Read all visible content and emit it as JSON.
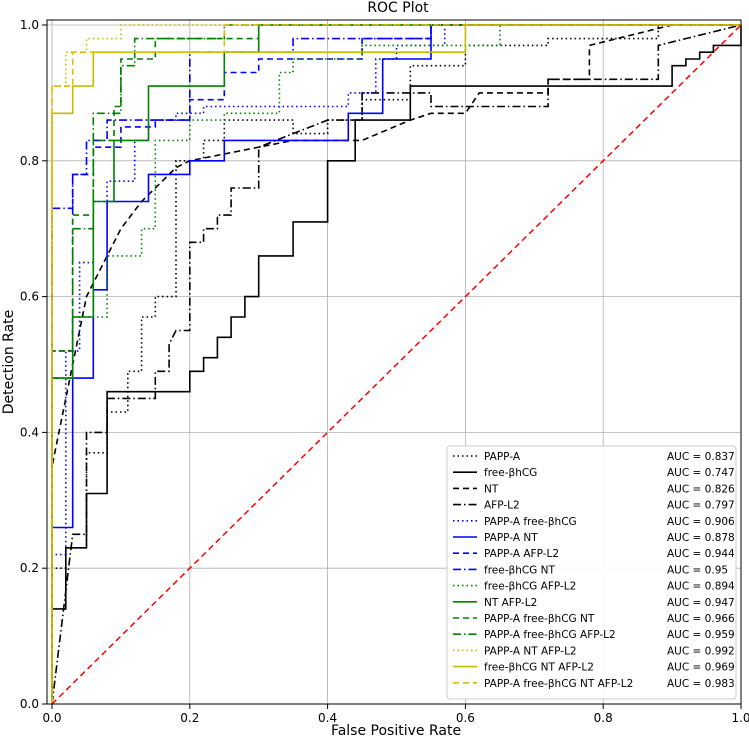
{
  "chart_data": {
    "type": "line",
    "title": "ROC Plot",
    "xlabel": "False Positive Rate",
    "ylabel": "Detection Rate",
    "xlim": [
      0,
      1
    ],
    "ylim": [
      0,
      1
    ],
    "xticks": [
      0.0,
      0.2,
      0.4,
      0.6,
      0.8,
      1.0
    ],
    "xtick_labels": [
      "0.0",
      "0.2",
      "0.4",
      "0.6",
      "0.8",
      "1.0"
    ],
    "yticks": [
      0.0,
      0.2,
      0.4,
      0.6,
      0.8,
      1.0
    ],
    "ytick_labels": [
      "0.0",
      "0.2",
      "0.4",
      "0.6",
      "0.8",
      "1.0"
    ],
    "grid": true,
    "legend_position": "bottom-right",
    "reference_line": {
      "x": [
        0,
        1
      ],
      "y": [
        0,
        1
      ],
      "color": "#ff0000",
      "style": "dashed"
    },
    "series": [
      {
        "name": "PAPP-A",
        "auc_label": "AUC = 0.837",
        "color": "#000000",
        "style": "dotted",
        "x": [
          0,
          0,
          0.02,
          0.02,
          0.05,
          0.05,
          0.08,
          0.08,
          0.11,
          0.11,
          0.13,
          0.13,
          0.15,
          0.15,
          0.18,
          0.18,
          0.22,
          0.22,
          0.25,
          0.25,
          0.35,
          0.35,
          0.4,
          0.4,
          0.45,
          0.45,
          0.52,
          0.52,
          0.6,
          0.6,
          0.72,
          0.72,
          0.88,
          0.88,
          1
        ],
        "y": [
          0,
          0.2,
          0.2,
          0.23,
          0.23,
          0.37,
          0.37,
          0.43,
          0.43,
          0.49,
          0.49,
          0.57,
          0.57,
          0.6,
          0.6,
          0.8,
          0.8,
          0.83,
          0.83,
          0.86,
          0.86,
          0.84,
          0.84,
          0.86,
          0.86,
          0.89,
          0.89,
          0.94,
          0.94,
          0.97,
          0.97,
          0.98,
          0.98,
          1.0,
          1.0
        ]
      },
      {
        "name": "free-βhCG",
        "auc_label": "AUC = 0.747",
        "color": "#000000",
        "style": "solid",
        "x": [
          0,
          0,
          0.02,
          0.02,
          0.05,
          0.05,
          0.08,
          0.08,
          0.2,
          0.2,
          0.22,
          0.22,
          0.24,
          0.24,
          0.26,
          0.26,
          0.28,
          0.28,
          0.3,
          0.3,
          0.35,
          0.35,
          0.4,
          0.4,
          0.44,
          0.44,
          0.52,
          0.52,
          0.75,
          0.75,
          0.9,
          0.9,
          0.92,
          0.92,
          0.94,
          0.94,
          0.96,
          0.96,
          1,
          1
        ],
        "y": [
          0.03,
          0.14,
          0.14,
          0.23,
          0.23,
          0.31,
          0.31,
          0.46,
          0.46,
          0.49,
          0.49,
          0.51,
          0.51,
          0.54,
          0.54,
          0.57,
          0.57,
          0.6,
          0.6,
          0.66,
          0.66,
          0.71,
          0.71,
          0.8,
          0.8,
          0.86,
          0.86,
          0.91,
          0.91,
          0.91,
          0.91,
          0.94,
          0.94,
          0.95,
          0.95,
          0.96,
          0.96,
          0.97,
          0.97,
          1.0
        ]
      },
      {
        "name": "NT",
        "auc_label": "AUC = 0.826",
        "color": "#000000",
        "style": "dashed",
        "x": [
          0,
          0,
          0.05,
          0.1,
          0.13,
          0.18,
          0.2,
          0.35,
          0.45,
          0.52,
          0.55,
          0.6,
          0.62,
          0.72,
          0.72,
          0.78,
          0.78,
          0.9,
          0.92,
          1
        ],
        "y": [
          0,
          0.35,
          0.6,
          0.7,
          0.74,
          0.79,
          0.8,
          0.83,
          0.83,
          0.86,
          0.87,
          0.87,
          0.9,
          0.9,
          0.92,
          0.92,
          0.97,
          1.0,
          1.0,
          1.0
        ]
      },
      {
        "name": "AFP-L2",
        "auc_label": "AUC = 0.797",
        "color": "#000000",
        "style": "dashdot",
        "x": [
          0,
          0.03,
          0.05,
          0.05,
          0.08,
          0.08,
          0.15,
          0.15,
          0.17,
          0.17,
          0.18,
          0.2,
          0.2,
          0.22,
          0.22,
          0.24,
          0.24,
          0.26,
          0.26,
          0.3,
          0.3,
          0.35,
          0.4,
          0.45,
          0.45,
          0.55,
          0.55,
          0.72,
          0.72,
          0.78,
          0.78,
          0.88,
          0.88,
          1
        ],
        "y": [
          0,
          0.25,
          0.25,
          0.4,
          0.4,
          0.45,
          0.45,
          0.49,
          0.49,
          0.53,
          0.55,
          0.55,
          0.68,
          0.68,
          0.7,
          0.7,
          0.72,
          0.72,
          0.76,
          0.76,
          0.82,
          0.84,
          0.86,
          0.86,
          0.9,
          0.9,
          0.88,
          0.88,
          0.92,
          0.92,
          0.92,
          0.92,
          0.97,
          1.0
        ]
      },
      {
        "name": "PAPP-A free-βhCG",
        "auc_label": "AUC = 0.906",
        "color": "#0000ff",
        "style": "dotted",
        "x": [
          0,
          0,
          0.02,
          0.02,
          0.04,
          0.04,
          0.06,
          0.06,
          0.08,
          0.08,
          0.12,
          0.12,
          0.14,
          0.14,
          0.18,
          0.18,
          0.22,
          0.22,
          0.3,
          0.3,
          0.43,
          0.43,
          0.47,
          0.47,
          0.5,
          0.5,
          0.57,
          0.57,
          1
        ],
        "y": [
          0,
          0.22,
          0.22,
          0.52,
          0.52,
          0.65,
          0.65,
          0.74,
          0.74,
          0.77,
          0.77,
          0.83,
          0.83,
          0.86,
          0.86,
          0.87,
          0.87,
          0.88,
          0.88,
          0.88,
          0.88,
          0.9,
          0.9,
          0.95,
          0.95,
          0.97,
          0.97,
          1.0,
          1.0
        ]
      },
      {
        "name": "PAPP-A NT",
        "auc_label": "AUC = 0.878",
        "color": "#0000ff",
        "style": "solid",
        "x": [
          0,
          0,
          0.03,
          0.03,
          0.06,
          0.06,
          0.08,
          0.08,
          0.14,
          0.14,
          0.2,
          0.2,
          0.25,
          0.25,
          0.43,
          0.43,
          0.48,
          0.48,
          0.55,
          0.55,
          1
        ],
        "y": [
          0,
          0.26,
          0.26,
          0.48,
          0.48,
          0.61,
          0.61,
          0.74,
          0.74,
          0.78,
          0.78,
          0.8,
          0.8,
          0.83,
          0.83,
          0.87,
          0.87,
          0.95,
          0.95,
          1.0,
          1.0
        ]
      },
      {
        "name": "PAPP-A AFP-L2",
        "auc_label": "AUC = 0.944",
        "color": "#0000ff",
        "style": "dashed",
        "x": [
          0,
          0,
          0.03,
          0.03,
          0.06,
          0.06,
          0.1,
          0.1,
          0.15,
          0.15,
          0.2,
          0.2,
          0.25,
          0.25,
          0.3,
          0.3,
          0.45,
          0.45,
          0.55,
          0.55,
          1
        ],
        "y": [
          0,
          0.52,
          0.52,
          0.78,
          0.78,
          0.82,
          0.82,
          0.85,
          0.85,
          0.86,
          0.86,
          0.89,
          0.89,
          0.93,
          0.93,
          0.95,
          0.95,
          0.98,
          0.98,
          1.0,
          1.0
        ]
      },
      {
        "name": "free-βhCG NT",
        "auc_label": "AUC = 0.95",
        "color": "#0000ff",
        "style": "dashdot",
        "x": [
          0,
          0,
          0.03,
          0.03,
          0.05,
          0.05,
          0.08,
          0.08,
          0.2,
          0.2,
          0.35,
          0.35,
          0.55,
          0.55,
          1
        ],
        "y": [
          0,
          0.73,
          0.73,
          0.78,
          0.78,
          0.83,
          0.83,
          0.86,
          0.86,
          0.96,
          0.96,
          0.98,
          0.98,
          1.0,
          1.0
        ]
      },
      {
        "name": "free-βhCG AFP-L2",
        "auc_label": "AUC = 0.894",
        "color": "#008000",
        "style": "dotted",
        "x": [
          0,
          0,
          0.03,
          0.03,
          0.08,
          0.08,
          0.13,
          0.13,
          0.15,
          0.15,
          0.2,
          0.2,
          0.25,
          0.25,
          0.33,
          0.33,
          0.35,
          0.35,
          0.45,
          0.45,
          0.65,
          0.65,
          1
        ],
        "y": [
          0,
          0.52,
          0.52,
          0.57,
          0.57,
          0.66,
          0.66,
          0.7,
          0.7,
          0.83,
          0.83,
          0.86,
          0.86,
          0.87,
          0.87,
          0.93,
          0.93,
          0.95,
          0.95,
          0.97,
          0.97,
          1.0,
          1.0
        ]
      },
      {
        "name": "NT AFP-L2",
        "auc_label": "AUC = 0.947",
        "color": "#008000",
        "style": "solid",
        "x": [
          0,
          0,
          0.03,
          0.03,
          0.06,
          0.06,
          0.09,
          0.09,
          0.14,
          0.14,
          0.25,
          0.25,
          0.3,
          0.3,
          1
        ],
        "y": [
          0,
          0.48,
          0.48,
          0.57,
          0.57,
          0.74,
          0.74,
          0.83,
          0.83,
          0.91,
          0.91,
          0.96,
          0.96,
          1.0,
          1.0
        ]
      },
      {
        "name": "PAPP-A free-βhCG NT",
        "auc_label": "AUC = 0.966",
        "color": "#008000",
        "style": "dashed",
        "x": [
          0,
          0,
          0.03,
          0.03,
          0.06,
          0.06,
          0.09,
          0.09,
          0.1,
          0.1,
          0.15,
          0.15,
          0.3,
          0.3,
          1
        ],
        "y": [
          0,
          0.52,
          0.52,
          0.72,
          0.72,
          0.83,
          0.83,
          0.88,
          0.88,
          0.95,
          0.95,
          0.98,
          0.98,
          1.0,
          1.0
        ]
      },
      {
        "name": "PAPP-A free-βhCG AFP-L2",
        "auc_label": "AUC = 0.959",
        "color": "#008000",
        "style": "dashdot",
        "x": [
          0,
          0,
          0.03,
          0.03,
          0.06,
          0.06,
          0.1,
          0.1,
          0.12,
          0.12,
          0.25,
          0.25,
          0.3,
          0.3,
          1
        ],
        "y": [
          0,
          0.48,
          0.48,
          0.7,
          0.7,
          0.87,
          0.87,
          0.94,
          0.94,
          0.98,
          0.98,
          1.0,
          1.0,
          1.0,
          1.0
        ]
      },
      {
        "name": "PAPP-A NT AFP-L2",
        "auc_label": "AUC = 0.992",
        "color": "#bfbf00",
        "style": "dotted",
        "x": [
          0,
          0,
          0.02,
          0.02,
          0.05,
          0.05,
          0.1,
          0.1,
          1
        ],
        "y": [
          0,
          0.91,
          0.91,
          0.96,
          0.96,
          0.98,
          0.98,
          1.0,
          1.0
        ]
      },
      {
        "name": "free-βhCG NT AFP-L2",
        "auc_label": "AUC = 0.969",
        "color": "#bfbf00",
        "style": "solid",
        "x": [
          0,
          0,
          0.03,
          0.03,
          0.06,
          0.06,
          0.2,
          0.2,
          0.6,
          0.6,
          1
        ],
        "y": [
          0,
          0.87,
          0.87,
          0.91,
          0.91,
          0.96,
          0.96,
          0.96,
          0.96,
          1.0,
          1.0
        ]
      },
      {
        "name": "PAPP-A free-βhCG NT AFP-L2",
        "auc_label": "AUC = 0.983",
        "color": "#e6b800",
        "style": "dashed",
        "x": [
          0,
          0,
          0.03,
          0.03,
          0.08,
          0.08,
          0.25,
          0.25,
          1
        ],
        "y": [
          0,
          0.91,
          0.91,
          0.96,
          0.96,
          0.96,
          0.96,
          1.0,
          1.0
        ]
      }
    ]
  }
}
